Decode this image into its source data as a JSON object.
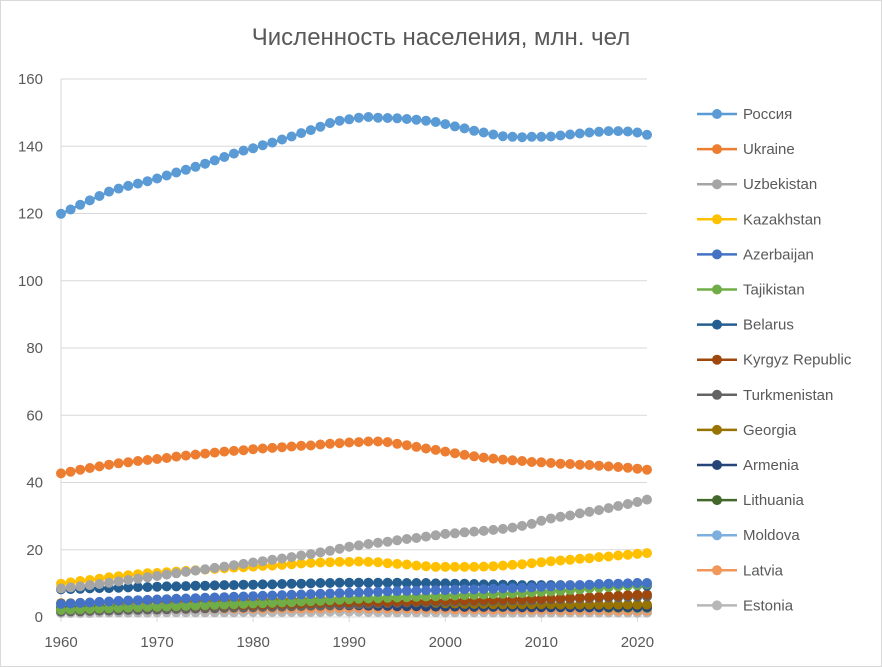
{
  "chart_data": {
    "type": "line",
    "title": "Численность населения, млн. чел",
    "xlabel": "",
    "ylabel": "",
    "xlim": [
      1960,
      2021
    ],
    "ylim": [
      0,
      160
    ],
    "y_ticks": [
      0,
      20,
      40,
      60,
      80,
      100,
      120,
      140,
      160
    ],
    "x_ticks": [
      1960,
      1970,
      1980,
      1990,
      2000,
      2010,
      2020
    ],
    "grid": "horizontal",
    "legend_position": "right",
    "markers": "circle",
    "x": [
      1960,
      1961,
      1962,
      1963,
      1964,
      1965,
      1966,
      1967,
      1968,
      1969,
      1970,
      1971,
      1972,
      1973,
      1974,
      1975,
      1976,
      1977,
      1978,
      1979,
      1980,
      1981,
      1982,
      1983,
      1984,
      1985,
      1986,
      1987,
      1988,
      1989,
      1990,
      1991,
      1992,
      1993,
      1994,
      1995,
      1996,
      1997,
      1998,
      1999,
      2000,
      2001,
      2002,
      2003,
      2004,
      2005,
      2006,
      2007,
      2008,
      2009,
      2010,
      2011,
      2012,
      2013,
      2014,
      2015,
      2016,
      2017,
      2018,
      2019,
      2020,
      2021
    ],
    "series": [
      {
        "name": "Россия",
        "color": "#5b9bd5",
        "values": [
          119.9,
          121.2,
          122.6,
          123.9,
          125.2,
          126.5,
          127.4,
          128.2,
          128.9,
          129.6,
          130.4,
          131.3,
          132.2,
          133.0,
          133.9,
          134.8,
          135.8,
          136.8,
          137.8,
          138.7,
          139.4,
          140.3,
          141.1,
          142.0,
          142.9,
          143.9,
          144.8,
          145.8,
          146.9,
          147.6,
          148.0,
          148.5,
          148.7,
          148.5,
          148.4,
          148.3,
          148.1,
          147.9,
          147.6,
          147.2,
          146.6,
          145.9,
          145.3,
          144.6,
          144.1,
          143.5,
          143.0,
          142.8,
          142.7,
          142.8,
          142.8,
          142.9,
          143.2,
          143.5,
          143.8,
          144.1,
          144.3,
          144.5,
          144.5,
          144.4,
          144.1,
          143.4
        ]
      },
      {
        "name": "Ukraine",
        "color": "#ed7d31",
        "values": [
          42.7,
          43.2,
          43.8,
          44.3,
          44.8,
          45.3,
          45.7,
          46.0,
          46.4,
          46.7,
          47.0,
          47.3,
          47.7,
          48.0,
          48.3,
          48.6,
          48.9,
          49.2,
          49.4,
          49.6,
          49.9,
          50.1,
          50.3,
          50.5,
          50.7,
          50.9,
          51.0,
          51.3,
          51.5,
          51.7,
          51.9,
          52.0,
          52.2,
          52.2,
          52.0,
          51.5,
          51.1,
          50.6,
          50.1,
          49.7,
          49.2,
          48.7,
          48.2,
          47.8,
          47.4,
          47.1,
          46.8,
          46.6,
          46.4,
          46.1,
          46.0,
          45.8,
          45.6,
          45.5,
          45.3,
          45.2,
          45.0,
          44.8,
          44.6,
          44.4,
          44.1,
          43.8
        ]
      },
      {
        "name": "Uzbekistan",
        "color": "#a5a5a5",
        "values": [
          8.5,
          8.8,
          9.1,
          9.5,
          9.8,
          10.2,
          10.6,
          11.0,
          11.4,
          11.8,
          12.2,
          12.6,
          13.0,
          13.4,
          13.8,
          14.2,
          14.6,
          15.0,
          15.4,
          15.8,
          16.2,
          16.6,
          17.0,
          17.4,
          17.8,
          18.3,
          18.7,
          19.2,
          19.7,
          20.3,
          20.9,
          21.3,
          21.7,
          22.1,
          22.4,
          22.8,
          23.2,
          23.5,
          23.9,
          24.3,
          24.7,
          24.9,
          25.2,
          25.4,
          25.6,
          25.9,
          26.2,
          26.6,
          27.1,
          27.7,
          28.6,
          29.3,
          29.8,
          30.2,
          30.8,
          31.3,
          31.8,
          32.4,
          33.0,
          33.6,
          34.2,
          34.9
        ]
      },
      {
        "name": "Kazakhstan",
        "color": "#ffc000",
        "values": [
          9.9,
          10.3,
          10.7,
          11.0,
          11.4,
          11.8,
          12.1,
          12.4,
          12.7,
          13.0,
          13.1,
          13.3,
          13.5,
          13.7,
          13.9,
          14.1,
          14.3,
          14.5,
          14.7,
          14.8,
          15.0,
          15.2,
          15.3,
          15.5,
          15.7,
          15.9,
          16.1,
          16.2,
          16.3,
          16.4,
          16.4,
          16.5,
          16.4,
          16.3,
          16.0,
          15.8,
          15.6,
          15.3,
          15.1,
          14.9,
          14.9,
          14.9,
          14.9,
          14.9,
          15.0,
          15.1,
          15.3,
          15.5,
          15.7,
          16.0,
          16.3,
          16.6,
          16.8,
          17.0,
          17.3,
          17.5,
          17.8,
          18.0,
          18.3,
          18.5,
          18.8,
          19.0
        ]
      },
      {
        "name": "Azerbaijan",
        "color": "#4472c4",
        "values": [
          3.9,
          4.0,
          4.2,
          4.3,
          4.5,
          4.6,
          4.8,
          4.9,
          5.0,
          5.1,
          5.2,
          5.3,
          5.4,
          5.5,
          5.6,
          5.7,
          5.8,
          5.9,
          6.0,
          6.1,
          6.2,
          6.3,
          6.4,
          6.5,
          6.6,
          6.7,
          6.8,
          6.9,
          7.0,
          7.1,
          7.2,
          7.3,
          7.4,
          7.5,
          7.6,
          7.7,
          7.8,
          7.8,
          7.9,
          8.0,
          8.0,
          8.1,
          8.2,
          8.2,
          8.3,
          8.4,
          8.5,
          8.6,
          8.7,
          8.8,
          9.0,
          9.1,
          9.3,
          9.4,
          9.5,
          9.6,
          9.8,
          9.9,
          9.9,
          10.0,
          10.1,
          10.1
        ]
      },
      {
        "name": "Tajikistan",
        "color": "#70ad47",
        "values": [
          2.1,
          2.2,
          2.3,
          2.4,
          2.5,
          2.6,
          2.7,
          2.8,
          2.9,
          3.0,
          3.0,
          3.1,
          3.2,
          3.3,
          3.4,
          3.5,
          3.6,
          3.7,
          3.8,
          3.9,
          4.0,
          4.1,
          4.2,
          4.3,
          4.4,
          4.6,
          4.7,
          4.8,
          5.0,
          5.1,
          5.3,
          5.4,
          5.5,
          5.6,
          5.7,
          5.8,
          5.9,
          6.0,
          6.1,
          6.2,
          6.3,
          6.4,
          6.5,
          6.6,
          6.7,
          6.8,
          6.9,
          7.0,
          7.1,
          7.3,
          7.5,
          7.6,
          7.8,
          8.0,
          8.2,
          8.5,
          8.7,
          8.9,
          9.1,
          9.3,
          9.5,
          9.8
        ]
      },
      {
        "name": "Belarus",
        "color": "#255e91",
        "values": [
          8.2,
          8.3,
          8.4,
          8.5,
          8.6,
          8.6,
          8.7,
          8.8,
          8.9,
          8.9,
          9.0,
          9.1,
          9.1,
          9.2,
          9.3,
          9.3,
          9.4,
          9.5,
          9.5,
          9.6,
          9.6,
          9.7,
          9.7,
          9.8,
          9.9,
          9.9,
          10.0,
          10.1,
          10.1,
          10.2,
          10.2,
          10.2,
          10.2,
          10.2,
          10.2,
          10.2,
          10.1,
          10.1,
          10.1,
          10.0,
          10.0,
          9.9,
          9.9,
          9.8,
          9.7,
          9.7,
          9.6,
          9.6,
          9.5,
          9.5,
          9.5,
          9.5,
          9.5,
          9.5,
          9.5,
          9.5,
          9.5,
          9.5,
          9.5,
          9.4,
          9.4,
          9.3
        ]
      },
      {
        "name": "Kyrgyz Republic",
        "color": "#9e480e",
        "values": [
          2.2,
          2.3,
          2.3,
          2.4,
          2.5,
          2.6,
          2.7,
          2.8,
          2.9,
          3.0,
          3.0,
          3.1,
          3.2,
          3.3,
          3.3,
          3.4,
          3.5,
          3.5,
          3.6,
          3.6,
          3.6,
          3.7,
          3.8,
          3.9,
          3.9,
          4.0,
          4.1,
          4.2,
          4.3,
          4.3,
          4.4,
          4.5,
          4.5,
          4.5,
          4.5,
          4.6,
          4.6,
          4.7,
          4.8,
          4.9,
          4.9,
          5.0,
          5.0,
          5.0,
          5.1,
          5.1,
          5.2,
          5.3,
          5.3,
          5.4,
          5.4,
          5.5,
          5.6,
          5.7,
          5.8,
          5.9,
          6.0,
          6.2,
          6.3,
          6.5,
          6.6,
          6.7
        ]
      },
      {
        "name": "Turkmenistan",
        "color": "#636363",
        "values": [
          1.6,
          1.7,
          1.7,
          1.8,
          1.9,
          1.9,
          2.0,
          2.1,
          2.1,
          2.2,
          2.2,
          2.3,
          2.4,
          2.4,
          2.5,
          2.6,
          2.6,
          2.7,
          2.8,
          2.8,
          2.9,
          3.0,
          3.0,
          3.1,
          3.2,
          3.3,
          3.4,
          3.4,
          3.5,
          3.6,
          3.7,
          3.8,
          3.9,
          4.0,
          4.1,
          4.2,
          4.3,
          4.4,
          4.4,
          4.5,
          4.5,
          4.6,
          4.6,
          4.7,
          4.7,
          4.8,
          4.8,
          4.9,
          4.9,
          5.0,
          5.1,
          5.2,
          5.3,
          5.4,
          5.5,
          5.6,
          5.7,
          5.8,
          5.9,
          6.0,
          6.0,
          6.1
        ]
      },
      {
        "name": "Georgia",
        "color": "#997300",
        "values": [
          4.1,
          4.1,
          4.2,
          4.2,
          4.3,
          4.3,
          4.4,
          4.5,
          4.5,
          4.6,
          4.7,
          4.7,
          4.7,
          4.8,
          4.8,
          4.8,
          4.9,
          4.9,
          4.9,
          5.0,
          5.0,
          5.0,
          5.1,
          5.1,
          5.1,
          5.2,
          5.2,
          5.3,
          5.3,
          5.3,
          5.4,
          5.4,
          5.1,
          4.9,
          4.7,
          4.6,
          4.5,
          4.4,
          4.3,
          4.2,
          4.1,
          4.0,
          3.9,
          3.9,
          3.9,
          3.8,
          3.8,
          3.8,
          3.8,
          3.8,
          3.8,
          3.8,
          3.7,
          3.7,
          3.7,
          3.7,
          3.7,
          3.7,
          3.7,
          3.7,
          3.7,
          3.7
        ]
      },
      {
        "name": "Armenia",
        "color": "#264478",
        "values": [
          1.9,
          1.9,
          2.0,
          2.1,
          2.2,
          2.2,
          2.3,
          2.4,
          2.4,
          2.5,
          2.5,
          2.6,
          2.7,
          2.7,
          2.8,
          2.8,
          2.9,
          2.9,
          3.0,
          3.0,
          3.1,
          3.1,
          3.2,
          3.2,
          3.3,
          3.3,
          3.4,
          3.4,
          3.5,
          3.5,
          3.5,
          3.5,
          3.4,
          3.3,
          3.3,
          3.2,
          3.2,
          3.2,
          3.1,
          3.1,
          3.1,
          3.1,
          3.0,
          3.0,
          3.0,
          3.0,
          3.0,
          3.0,
          2.9,
          2.9,
          2.9,
          2.9,
          2.9,
          2.9,
          2.9,
          2.9,
          2.9,
          3.0,
          3.0,
          3.0,
          3.0,
          3.0
        ]
      },
      {
        "name": "Lithuania",
        "color": "#43682b",
        "values": [
          2.8,
          2.8,
          2.9,
          2.9,
          3.0,
          3.0,
          3.0,
          3.1,
          3.1,
          3.1,
          3.1,
          3.2,
          3.2,
          3.2,
          3.3,
          3.3,
          3.3,
          3.3,
          3.4,
          3.4,
          3.4,
          3.4,
          3.5,
          3.5,
          3.5,
          3.6,
          3.6,
          3.6,
          3.7,
          3.7,
          3.7,
          3.7,
          3.7,
          3.7,
          3.7,
          3.6,
          3.6,
          3.6,
          3.5,
          3.5,
          3.5,
          3.5,
          3.4,
          3.4,
          3.4,
          3.3,
          3.3,
          3.2,
          3.2,
          3.1,
          3.1,
          3.0,
          3.0,
          3.0,
          2.9,
          2.9,
          2.9,
          2.8,
          2.8,
          2.8,
          2.8,
          2.8
        ]
      },
      {
        "name": "Moldova",
        "color": "#7cafdd",
        "values": [
          3.0,
          3.0,
          3.1,
          3.1,
          3.2,
          3.2,
          3.3,
          3.3,
          3.4,
          3.4,
          3.5,
          3.5,
          3.6,
          3.6,
          3.7,
          3.7,
          3.8,
          3.8,
          3.9,
          3.9,
          4.0,
          4.0,
          4.0,
          4.1,
          4.1,
          4.2,
          4.2,
          4.3,
          4.3,
          4.4,
          4.4,
          4.4,
          4.3,
          4.2,
          4.1,
          4.1,
          4.0,
          3.9,
          3.8,
          3.7,
          3.6,
          3.4,
          3.3,
          3.2,
          3.1,
          3.0,
          3.0,
          2.9,
          2.9,
          2.9,
          2.9,
          2.8,
          2.8,
          2.8,
          2.8,
          2.7,
          2.7,
          2.7,
          2.7,
          2.7,
          2.6,
          2.6
        ]
      },
      {
        "name": "Latvia",
        "color": "#f1975a",
        "values": [
          2.1,
          2.1,
          2.2,
          2.2,
          2.2,
          2.3,
          2.3,
          2.3,
          2.3,
          2.4,
          2.4,
          2.4,
          2.4,
          2.4,
          2.5,
          2.5,
          2.5,
          2.5,
          2.5,
          2.5,
          2.5,
          2.5,
          2.6,
          2.6,
          2.6,
          2.6,
          2.6,
          2.6,
          2.7,
          2.7,
          2.7,
          2.7,
          2.6,
          2.6,
          2.5,
          2.5,
          2.5,
          2.4,
          2.4,
          2.4,
          2.4,
          2.3,
          2.3,
          2.3,
          2.3,
          2.2,
          2.2,
          2.2,
          2.2,
          2.1,
          2.1,
          2.1,
          2.0,
          2.0,
          2.0,
          2.0,
          2.0,
          1.9,
          1.9,
          1.9,
          1.9,
          1.9
        ]
      },
      {
        "name": "Estonia",
        "color": "#b7b7b7",
        "values": [
          1.2,
          1.2,
          1.2,
          1.2,
          1.3,
          1.3,
          1.3,
          1.3,
          1.3,
          1.3,
          1.4,
          1.4,
          1.4,
          1.4,
          1.4,
          1.4,
          1.4,
          1.4,
          1.4,
          1.5,
          1.5,
          1.5,
          1.5,
          1.5,
          1.5,
          1.5,
          1.5,
          1.5,
          1.6,
          1.6,
          1.6,
          1.6,
          1.5,
          1.5,
          1.4,
          1.4,
          1.4,
          1.4,
          1.4,
          1.4,
          1.4,
          1.4,
          1.4,
          1.4,
          1.4,
          1.3,
          1.3,
          1.3,
          1.3,
          1.3,
          1.3,
          1.3,
          1.3,
          1.3,
          1.3,
          1.3,
          1.3,
          1.3,
          1.3,
          1.3,
          1.3,
          1.3
        ]
      }
    ]
  }
}
